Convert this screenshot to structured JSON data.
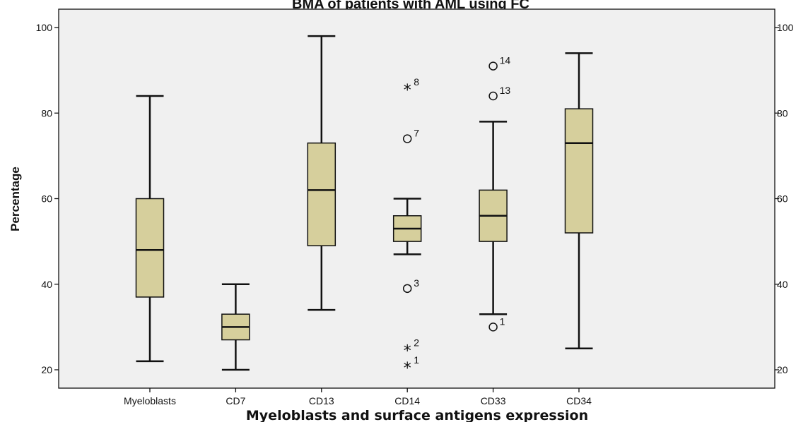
{
  "chart_data": {
    "type": "box",
    "title": "BMA of patients with AML using FC",
    "xlabel": "Myeloblasts and surface antigens expression",
    "ylabel": "Percentage",
    "ylim": [
      17,
      105
    ],
    "yticks": [
      20,
      40,
      60,
      80,
      100
    ],
    "right_axis_ticks": true,
    "grid": false,
    "colors": {
      "plot_bg": "#f0f0f0",
      "box_fill": "#d6cf9c",
      "stroke": "#111111"
    },
    "categories": [
      "Myeloblasts",
      "CD7",
      "CD13",
      "CD14",
      "CD33",
      "CD34"
    ],
    "boxes": [
      {
        "category": "Myeloblasts",
        "min": 22,
        "q1": 37,
        "median": 48,
        "q3": 60,
        "max": 84,
        "outliers": []
      },
      {
        "category": "CD7",
        "min": 20,
        "q1": 27,
        "median": 30,
        "q3": 33,
        "max": 40,
        "outliers": []
      },
      {
        "category": "CD13",
        "min": 34,
        "q1": 49,
        "median": 62,
        "q3": 73,
        "max": 98,
        "outliers": []
      },
      {
        "category": "CD14",
        "min": 47,
        "q1": 50,
        "median": 53,
        "q3": 56,
        "max": 60,
        "outliers": [
          {
            "value": 86,
            "label": "8",
            "marker": "star"
          },
          {
            "value": 74,
            "label": "7",
            "marker": "circle"
          },
          {
            "value": 39,
            "label": "3",
            "marker": "circle"
          },
          {
            "value": 25,
            "label": "2",
            "marker": "star"
          },
          {
            "value": 21,
            "label": "1",
            "marker": "star"
          }
        ]
      },
      {
        "category": "CD33",
        "min": 33,
        "q1": 50,
        "median": 56,
        "q3": 62,
        "max": 78,
        "outliers": [
          {
            "value": 91,
            "label": "14",
            "marker": "circle"
          },
          {
            "value": 84,
            "label": "13",
            "marker": "circle"
          },
          {
            "value": 30,
            "label": "1",
            "marker": "circle"
          }
        ]
      },
      {
        "category": "CD34",
        "min": 25,
        "q1": 52,
        "median": 73,
        "q3": 81,
        "max": 94,
        "outliers": []
      }
    ]
  }
}
